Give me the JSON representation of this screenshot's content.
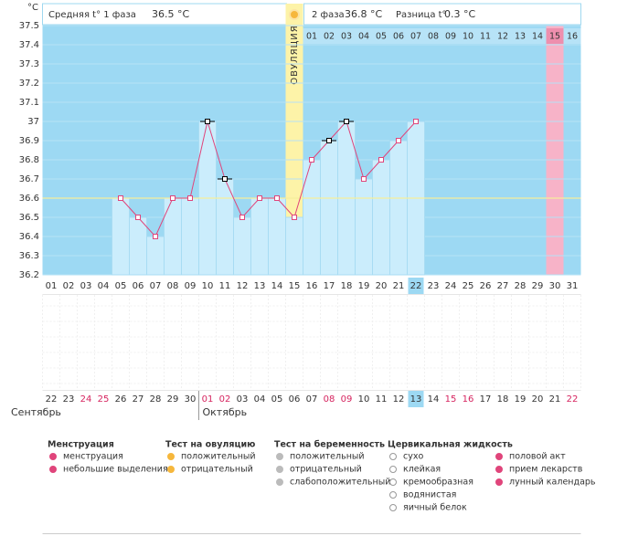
{
  "header": {
    "phase1_label": "Средняя t° 1 фаза",
    "phase1_value": "36.5 °C",
    "phase2_label": "2 фаза",
    "phase2_value": "36.8 °C",
    "diff_label": "Разница t°",
    "diff_value": "0.3 °C"
  },
  "chart_data": {
    "type": "line",
    "y_unit": "°C",
    "color": "#e0457b",
    "categories": [
      "01",
      "02",
      "03",
      "04",
      "05",
      "06",
      "07",
      "08",
      "09",
      "10",
      "11",
      "12",
      "13",
      "14",
      "15",
      "16",
      "17",
      "18",
      "19",
      "20",
      "21",
      "22",
      "23",
      "24",
      "25",
      "26",
      "27",
      "28",
      "29",
      "30",
      "31"
    ],
    "values": [
      null,
      null,
      null,
      null,
      36.6,
      36.5,
      36.4,
      36.6,
      36.6,
      37,
      36.7,
      36.5,
      36.6,
      36.6,
      36.5,
      36.8,
      36.9,
      37,
      36.7,
      36.8,
      36.9,
      37,
      null,
      null,
      null,
      null,
      null,
      null,
      null,
      null,
      null
    ],
    "marker_colors": [
      null,
      null,
      null,
      null,
      "#e0457b",
      "#e0457b",
      "#e0457b",
      "#e0457b",
      "#e0457b",
      "#000000",
      "#000000",
      "#e0457b",
      "#e0457b",
      "#e0457b",
      "#e0457b",
      "#e0457b",
      "#000000",
      "#000000",
      "#e0457b",
      "#e0457b",
      "#e0457b",
      "#e0457b",
      null,
      null,
      null,
      null,
      null,
      null,
      null,
      null,
      null
    ],
    "ylim": [
      36.2,
      37.5
    ],
    "yticks": [
      36.2,
      36.3,
      36.4,
      36.5,
      36.6,
      36.7,
      36.8,
      36.9,
      37,
      37.1,
      37.2,
      37.3,
      37.4,
      37.5
    ],
    "grid": true,
    "coverline": 36.6,
    "ovulation_day": "15",
    "ovulation_label": "ОВУЛЯЦИЯ",
    "expected_period_day": "30",
    "today": "22",
    "phase2_days": [
      "01",
      "02",
      "03",
      "04",
      "05",
      "06",
      "07",
      "08",
      "09",
      "10",
      "11",
      "12",
      "13",
      "14",
      "15",
      "16"
    ]
  },
  "calendar": {
    "dates": [
      "22",
      "23",
      "24",
      "25",
      "26",
      "27",
      "28",
      "29",
      "30",
      "01",
      "02",
      "03",
      "04",
      "05",
      "06",
      "07",
      "08",
      "09",
      "10",
      "11",
      "12",
      "13",
      "14",
      "15",
      "16",
      "17",
      "18",
      "19",
      "20",
      "21",
      "22"
    ],
    "weekend": [
      false,
      false,
      true,
      true,
      false,
      false,
      false,
      false,
      false,
      true,
      true,
      false,
      false,
      false,
      false,
      false,
      true,
      true,
      false,
      false,
      false,
      false,
      false,
      true,
      true,
      false,
      false,
      false,
      false,
      false,
      true
    ],
    "weekend_color": "#d6245f",
    "months": [
      "Сентябрь",
      "Октябрь"
    ]
  },
  "legend": [
    {
      "title": "Менструация",
      "items": [
        "менструация",
        "небольшие выделения"
      ]
    },
    {
      "title": "Тест на овуляцию",
      "items": [
        "положительный",
        "отрицательный"
      ]
    },
    {
      "title": "Тест на беременность",
      "items": [
        "положительный",
        "отрицательный",
        "слабоположительный"
      ]
    },
    {
      "title": "Цервикальная жидкость",
      "items": [
        "сухо",
        "клейкая",
        "кремообразная",
        "водянистая",
        "яичный белок"
      ]
    },
    {
      "items": [
        "половой акт",
        "прием лекарств",
        "лунный календарь"
      ]
    }
  ]
}
